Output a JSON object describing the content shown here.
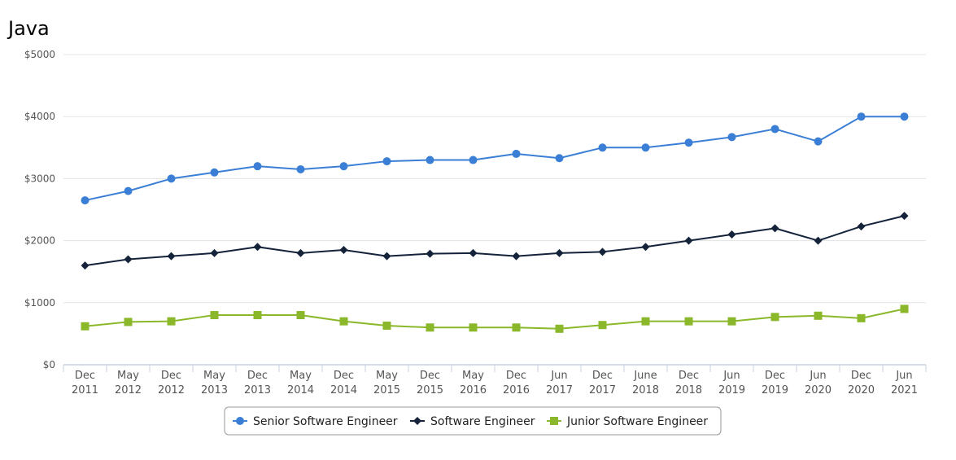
{
  "chart_data": {
    "type": "line",
    "title": "Java",
    "xlabel": "",
    "ylabel": "",
    "ylim": [
      0,
      5000
    ],
    "y_ticks": [
      "$0",
      "$1000",
      "$2000",
      "$3000",
      "$4000",
      "$5000"
    ],
    "grid": true,
    "legend_position": "bottom-center",
    "categories": [
      [
        "Dec",
        "2011"
      ],
      [
        "May",
        "2012"
      ],
      [
        "Dec",
        "2012"
      ],
      [
        "May",
        "2013"
      ],
      [
        "Dec",
        "2013"
      ],
      [
        "May",
        "2014"
      ],
      [
        "Dec",
        "2014"
      ],
      [
        "May",
        "2015"
      ],
      [
        "Dec",
        "2015"
      ],
      [
        "May",
        "2016"
      ],
      [
        "Dec",
        "2016"
      ],
      [
        "Jun",
        "2017"
      ],
      [
        "Dec",
        "2017"
      ],
      [
        "June",
        "2018"
      ],
      [
        "Dec",
        "2018"
      ],
      [
        "Jun",
        "2019"
      ],
      [
        "Dec",
        "2019"
      ],
      [
        "Jun",
        "2020"
      ],
      [
        "Dec",
        "2020"
      ],
      [
        "Jun",
        "2021"
      ]
    ],
    "series": [
      {
        "name": "Senior Software Engineer",
        "color": "#3a7fd5",
        "marker": "circle",
        "values": [
          2650,
          2800,
          3000,
          3100,
          3200,
          3150,
          3200,
          3280,
          3300,
          3300,
          3400,
          3330,
          3500,
          3500,
          3580,
          3670,
          3800,
          3600,
          4000,
          4000
        ]
      },
      {
        "name": "Software Engineer",
        "color": "#14233a",
        "marker": "diamond",
        "values": [
          1600,
          1700,
          1750,
          1800,
          1900,
          1800,
          1850,
          1750,
          1790,
          1800,
          1750,
          1800,
          1820,
          1900,
          2000,
          2100,
          2200,
          2000,
          2230,
          2400
        ]
      },
      {
        "name": "Junior Software Engineer",
        "color": "#8ab82a",
        "marker": "square",
        "values": [
          620,
          690,
          700,
          800,
          800,
          800,
          700,
          630,
          600,
          600,
          600,
          580,
          640,
          700,
          700,
          700,
          770,
          790,
          750,
          900
        ]
      }
    ]
  }
}
